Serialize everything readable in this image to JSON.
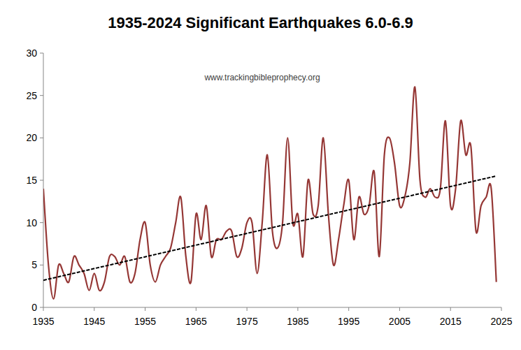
{
  "chart_data": {
    "type": "line",
    "title": "1935-2024 Significant Earthquakes 6.0-6.9",
    "annotations": [
      "www.trackingbibleprophecy.org"
    ],
    "x": [
      1935,
      1936,
      1937,
      1938,
      1939,
      1940,
      1941,
      1942,
      1943,
      1944,
      1945,
      1946,
      1947,
      1948,
      1949,
      1950,
      1951,
      1952,
      1953,
      1954,
      1955,
      1956,
      1957,
      1958,
      1959,
      1960,
      1961,
      1962,
      1963,
      1964,
      1965,
      1966,
      1967,
      1968,
      1969,
      1970,
      1971,
      1972,
      1973,
      1974,
      1975,
      1976,
      1977,
      1978,
      1979,
      1980,
      1981,
      1982,
      1983,
      1984,
      1985,
      1986,
      1987,
      1988,
      1989,
      1990,
      1991,
      1992,
      1993,
      1994,
      1995,
      1996,
      1997,
      1998,
      1999,
      2000,
      2001,
      2002,
      2003,
      2004,
      2005,
      2006,
      2007,
      2008,
      2009,
      2010,
      2011,
      2012,
      2013,
      2014,
      2015,
      2016,
      2017,
      2018,
      2019,
      2020,
      2021,
      2022,
      2023,
      2024
    ],
    "series": [
      {
        "color": "#953735",
        "values": [
          14,
          5,
          1,
          5,
          4,
          3,
          6,
          5,
          4,
          2,
          4,
          2,
          3,
          6,
          6,
          5,
          6,
          3,
          4,
          8,
          10,
          5,
          3,
          5,
          6,
          7,
          10,
          13,
          6,
          3,
          11,
          8,
          12,
          6,
          8,
          8,
          9,
          9,
          6,
          7,
          10,
          10,
          4,
          10,
          18,
          9,
          7,
          10,
          20,
          10,
          11,
          6,
          15,
          11,
          12,
          20,
          11,
          5,
          8,
          12,
          15,
          8,
          13,
          11,
          12,
          16,
          6,
          18,
          20,
          17,
          12,
          13,
          17,
          26,
          15,
          13,
          14,
          13,
          14,
          22,
          12,
          14,
          22,
          18,
          19,
          9,
          12,
          13,
          14,
          3
        ]
      }
    ],
    "trend": {
      "x": [
        1935,
        2024
      ],
      "values": [
        3.2,
        15.5
      ],
      "color": "#000000",
      "line_style": "dashed"
    },
    "xlim": [
      1935,
      2025
    ],
    "xticks": [
      1935,
      1945,
      1955,
      1965,
      1975,
      1985,
      1995,
      2005,
      2015,
      2025
    ],
    "ylim": [
      0,
      30
    ],
    "yticks": [
      0,
      5,
      10,
      15,
      20,
      25,
      30
    ],
    "grid": false
  }
}
